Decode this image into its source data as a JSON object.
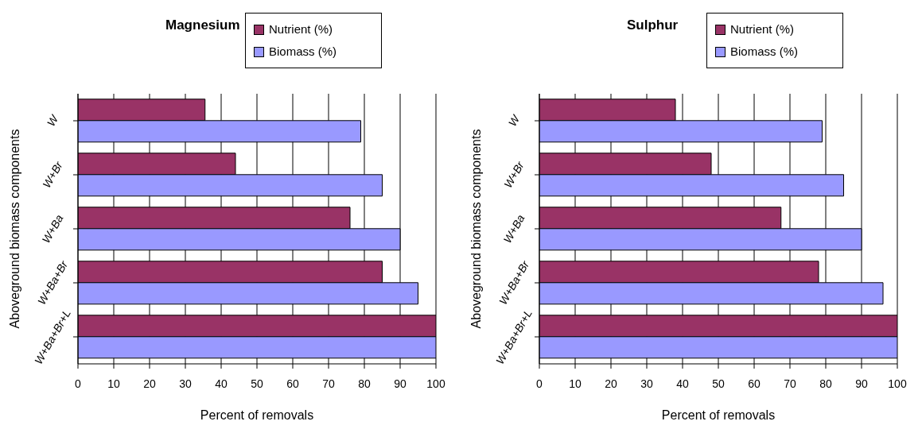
{
  "chart_data": [
    {
      "type": "bar",
      "orientation": "horizontal",
      "title": "Magnesium",
      "xlabel": "Percent of removals",
      "ylabel": "Aboveground biomass components",
      "categories": [
        "W",
        "W+Br",
        "W+Ba",
        "W+Ba+Br",
        "W+Ba+Br+L"
      ],
      "series": [
        {
          "name": "Nutrient (%)",
          "color": "#993366",
          "values": [
            35.5,
            44,
            76,
            85,
            100
          ]
        },
        {
          "name": "Biomass (%)",
          "color": "#9999ff",
          "values": [
            79,
            85,
            90,
            95,
            100
          ]
        }
      ],
      "xlim": [
        0,
        100
      ],
      "xticks": [
        0,
        10,
        20,
        30,
        40,
        50,
        60,
        70,
        80,
        90,
        100
      ],
      "grid": "x",
      "legend": "top"
    },
    {
      "type": "bar",
      "orientation": "horizontal",
      "title": "Sulphur",
      "xlabel": "Percent of removals",
      "ylabel": "Aboveground biomass components",
      "categories": [
        "W",
        "W+Br",
        "W+Ba",
        "W+Ba+Br",
        "W+Ba+Br+L"
      ],
      "series": [
        {
          "name": "Nutrient (%)",
          "color": "#993366",
          "values": [
            38,
            48,
            67.5,
            78,
            100
          ]
        },
        {
          "name": "Biomass (%)",
          "color": "#9999ff",
          "values": [
            79,
            85,
            90,
            96,
            100
          ]
        }
      ],
      "xlim": [
        0,
        100
      ],
      "xticks": [
        0,
        10,
        20,
        30,
        40,
        50,
        60,
        70,
        80,
        90,
        100
      ],
      "grid": "x",
      "legend": "top"
    }
  ]
}
